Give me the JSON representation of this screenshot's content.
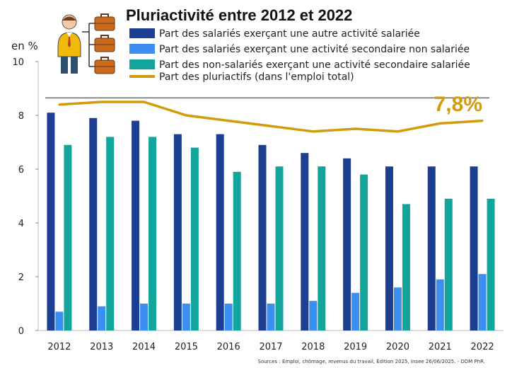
{
  "chart_data": {
    "type": "bar",
    "title": "Pluriactivité entre 2012 et 2022",
    "ylabel": "en %",
    "ylim": [
      0,
      10
    ],
    "yticks": [
      0,
      2,
      4,
      6,
      8,
      10
    ],
    "grid": false,
    "legend_position": "top",
    "categories": [
      "2012",
      "2013",
      "2014",
      "2015",
      "2016",
      "2017",
      "2018",
      "2019",
      "2020",
      "2021",
      "2022"
    ],
    "series": [
      {
        "name": "Part des salariés exerçant une autre activité salariée",
        "type": "bar",
        "color": "#1d3f91",
        "values": [
          8.1,
          7.9,
          7.8,
          7.3,
          7.3,
          6.9,
          6.6,
          6.4,
          6.1,
          6.1,
          6.1
        ]
      },
      {
        "name": "Part des salariés exerçant une activité secondaire non salariée",
        "type": "bar",
        "color": "#3a8ff0",
        "values": [
          0.7,
          0.9,
          1.0,
          1.0,
          1.0,
          1.0,
          1.1,
          1.4,
          1.6,
          1.9,
          2.1
        ]
      },
      {
        "name": "Part des non-salariés exerçant une activité secondaire salariée",
        "type": "bar",
        "color": "#12a59c",
        "values": [
          6.9,
          7.2,
          7.2,
          6.8,
          5.9,
          6.1,
          6.1,
          5.8,
          4.7,
          4.9,
          4.9
        ]
      },
      {
        "name": "Part des pluriactifs (dans l'emploi total)",
        "type": "line",
        "color": "#d39a0c",
        "values": [
          8.4,
          8.5,
          8.5,
          8.0,
          7.8,
          7.6,
          7.4,
          7.5,
          7.4,
          7.7,
          7.8
        ]
      }
    ],
    "annotations": {
      "callout_text": "7,8%",
      "callout_color": "#d39a0c",
      "reference_line_value": 8.65
    },
    "source": "Sources : Emploi, chômage, revenus du travail, Édition 2025, Insee 26/06/2025. - DDM PhR."
  },
  "icons": {
    "illustration": "worker-with-briefcases-icon"
  }
}
